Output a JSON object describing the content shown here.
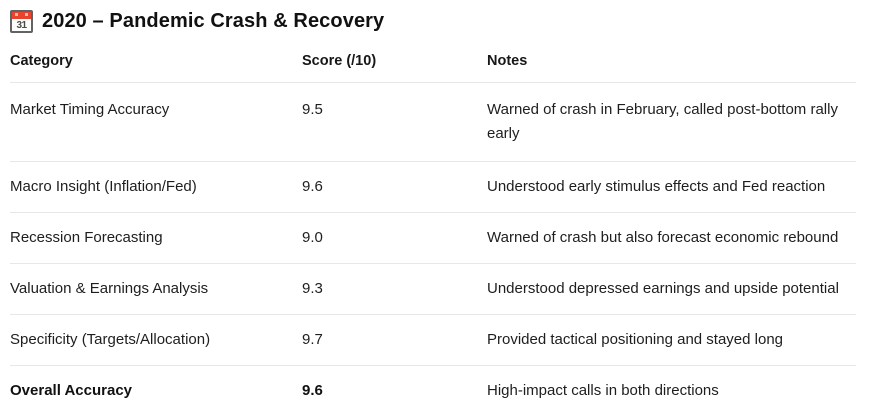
{
  "title": {
    "icon": "calendar-icon",
    "icon_day": "31",
    "text": "2020 – Pandemic Crash & Recovery"
  },
  "table": {
    "columns": {
      "category": "Category",
      "score": "Score (/10)",
      "notes": "Notes"
    },
    "rows": [
      {
        "category": "Market Timing Accuracy",
        "score": "9.5",
        "notes": "Warned of crash in February, called post-bottom rally early"
      },
      {
        "category": "Macro Insight (Inflation/Fed)",
        "score": "9.6",
        "notes": "Understood early stimulus effects and Fed reaction"
      },
      {
        "category": "Recession Forecasting",
        "score": "9.0",
        "notes": "Warned of crash but also forecast economic rebound"
      },
      {
        "category": "Valuation & Earnings Analysis",
        "score": "9.3",
        "notes": "Understood depressed earnings and upside potential"
      },
      {
        "category": "Specificity (Targets/Allocation)",
        "score": "9.7",
        "notes": "Provided tactical positioning and stayed long"
      },
      {
        "category": "Overall Accuracy",
        "score": "9.6",
        "notes": "High-impact calls in both directions"
      }
    ]
  },
  "colors": {
    "text": "#1a1a1a",
    "divider": "#e7e7e7",
    "calendar_red": "#e8432d"
  }
}
